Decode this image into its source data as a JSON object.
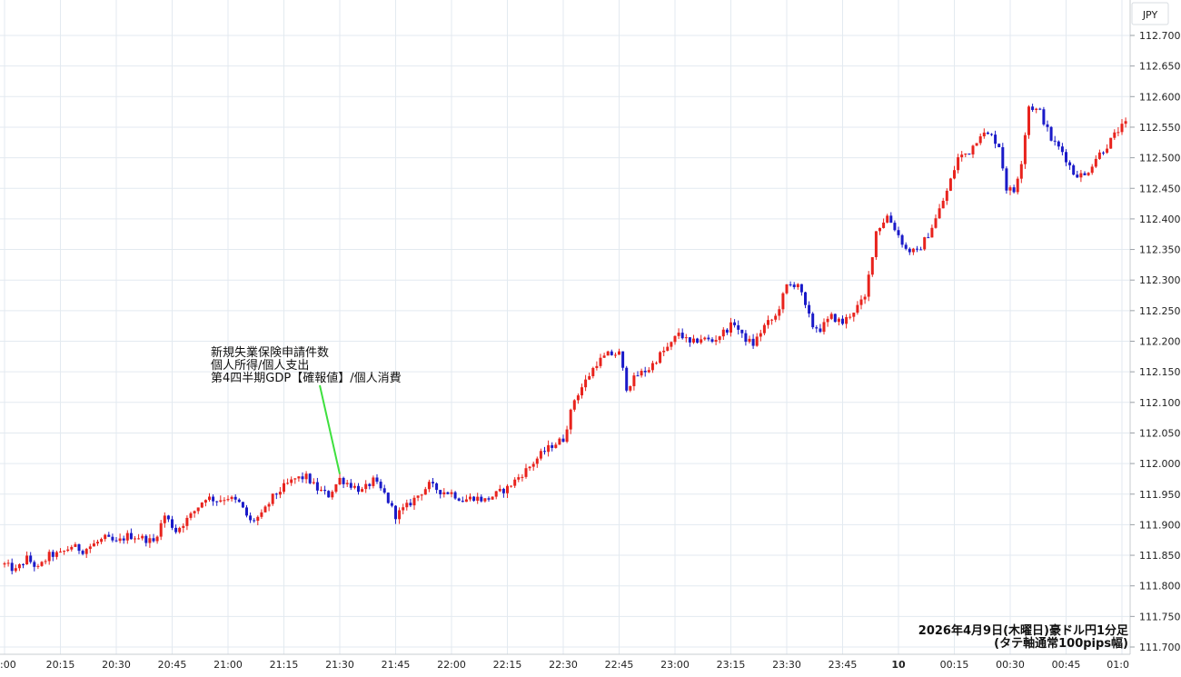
{
  "chart_data": {
    "type": "candlestick",
    "currency_label": "JPY",
    "caption_line1": "2026年4月9日(木曜日)豪ドル円1分足",
    "caption_line2": "(タテ軸通常100pips幅)",
    "annotation": {
      "lines": [
        "新規失業保険申請件数",
        "個人所得/個人支出",
        "第4四半期GDP【確報値】/個人消費"
      ],
      "time": "21:30",
      "price": 111.965
    },
    "y_ticks": [
      "111.700",
      "111.750",
      "111.800",
      "111.850",
      "111.900",
      "111.950",
      "112.000",
      "112.050",
      "112.100",
      "112.150",
      "112.200",
      "112.250",
      "112.300",
      "112.350",
      "112.400",
      "112.450",
      "112.500",
      "112.550",
      "112.600",
      "112.650",
      "112.700"
    ],
    "ylim": [
      111.7,
      112.7
    ],
    "x_ticks": [
      ":00",
      "20:15",
      "20:30",
      "20:45",
      "21:00",
      "21:15",
      "21:30",
      "21:45",
      "22:00",
      "22:15",
      "22:30",
      "22:45",
      "23:00",
      "23:15",
      "23:30",
      "23:45",
      "10",
      "00:15",
      "00:30",
      "00:45",
      "01:0"
    ],
    "x_tick_minutes": [
      0,
      15,
      30,
      45,
      60,
      75,
      90,
      105,
      120,
      135,
      150,
      165,
      180,
      195,
      210,
      225,
      240,
      255,
      270,
      285,
      300
    ],
    "colors": {
      "up": "#e8231d",
      "down": "#1a1ac8",
      "grid": "#e3eaf0",
      "annotation_line": "#3ee03e"
    },
    "close_path": [
      [
        0,
        111.835
      ],
      [
        3,
        111.825
      ],
      [
        6,
        111.845
      ],
      [
        9,
        111.828
      ],
      [
        12,
        111.85
      ],
      [
        15,
        111.852
      ],
      [
        18,
        111.865
      ],
      [
        21,
        111.858
      ],
      [
        24,
        111.868
      ],
      [
        27,
        111.878
      ],
      [
        30,
        111.87
      ],
      [
        33,
        111.882
      ],
      [
        36,
        111.88
      ],
      [
        40,
        111.872
      ],
      [
        43,
        111.915
      ],
      [
        46,
        111.89
      ],
      [
        50,
        111.915
      ],
      [
        54,
        111.945
      ],
      [
        57,
        111.94
      ],
      [
        60,
        111.945
      ],
      [
        63,
        111.935
      ],
      [
        66,
        111.905
      ],
      [
        69,
        111.915
      ],
      [
        72,
        111.945
      ],
      [
        75,
        111.962
      ],
      [
        78,
        111.975
      ],
      [
        81,
        111.978
      ],
      [
        84,
        111.958
      ],
      [
        87,
        111.948
      ],
      [
        90,
        111.975
      ],
      [
        93,
        111.965
      ],
      [
        96,
        111.955
      ],
      [
        99,
        111.972
      ],
      [
        102,
        111.95
      ],
      [
        105,
        111.915
      ],
      [
        108,
        111.93
      ],
      [
        111,
        111.948
      ],
      [
        114,
        111.965
      ],
      [
        117,
        111.955
      ],
      [
        120,
        111.952
      ],
      [
        123,
        111.94
      ],
      [
        126,
        111.945
      ],
      [
        129,
        111.94
      ],
      [
        132,
        111.95
      ],
      [
        135,
        111.96
      ],
      [
        138,
        111.978
      ],
      [
        141,
        111.995
      ],
      [
        144,
        112.015
      ],
      [
        147,
        112.03
      ],
      [
        150,
        112.04
      ],
      [
        153,
        112.105
      ],
      [
        156,
        112.135
      ],
      [
        159,
        112.165
      ],
      [
        162,
        112.178
      ],
      [
        165,
        112.18
      ],
      [
        167,
        112.125
      ],
      [
        170,
        112.145
      ],
      [
        173,
        112.155
      ],
      [
        176,
        112.178
      ],
      [
        179,
        112.195
      ],
      [
        181,
        112.215
      ],
      [
        184,
        112.195
      ],
      [
        187,
        112.205
      ],
      [
        190,
        112.2
      ],
      [
        193,
        112.215
      ],
      [
        196,
        112.23
      ],
      [
        198,
        112.208
      ],
      [
        201,
        112.195
      ],
      [
        204,
        112.225
      ],
      [
        207,
        112.24
      ],
      [
        210,
        112.29
      ],
      [
        213,
        112.295
      ],
      [
        215,
        112.255
      ],
      [
        217,
        112.225
      ],
      [
        219,
        112.22
      ],
      [
        222,
        112.24
      ],
      [
        225,
        112.23
      ],
      [
        228,
        112.25
      ],
      [
        231,
        112.27
      ],
      [
        234,
        112.38
      ],
      [
        237,
        112.405
      ],
      [
        239,
        112.385
      ],
      [
        242,
        112.35
      ],
      [
        245,
        112.345
      ],
      [
        248,
        112.375
      ],
      [
        250,
        112.4
      ],
      [
        253,
        112.445
      ],
      [
        256,
        112.5
      ],
      [
        259,
        112.51
      ],
      [
        262,
        112.54
      ],
      [
        265,
        112.535
      ],
      [
        267,
        112.52
      ],
      [
        269,
        112.45
      ],
      [
        271,
        112.445
      ],
      [
        273,
        112.495
      ],
      [
        275,
        112.585
      ],
      [
        278,
        112.575
      ],
      [
        281,
        112.53
      ],
      [
        284,
        112.51
      ],
      [
        287,
        112.475
      ],
      [
        290,
        112.47
      ],
      [
        293,
        112.5
      ],
      [
        296,
        112.52
      ],
      [
        299,
        112.545
      ],
      [
        301,
        112.555
      ]
    ]
  }
}
